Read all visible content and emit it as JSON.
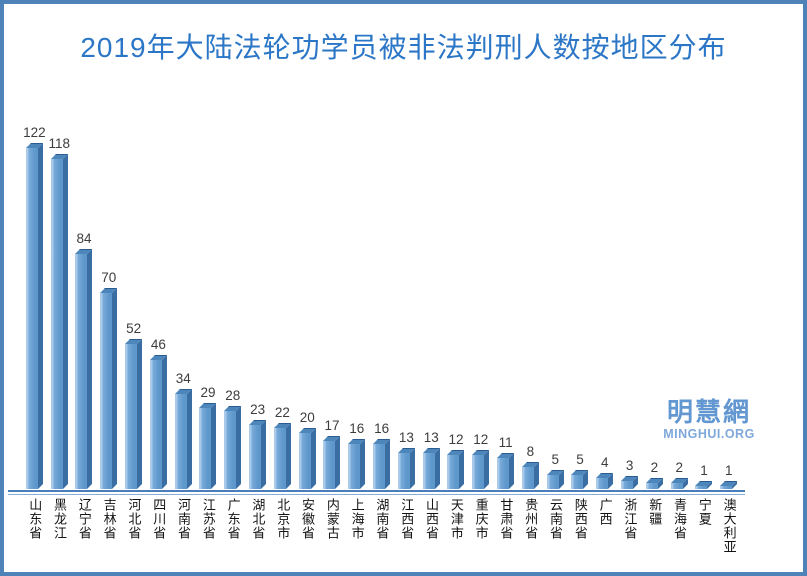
{
  "frame": {
    "border_color": "#4e82b9",
    "background_color": "#ffffff"
  },
  "title": "2019年大陆法轮功学员被非法判刑人数按地区分布",
  "title_color": "#2b76c6",
  "watermark": {
    "logo_text": "明慧網",
    "url_text": "MINGHUI.ORG",
    "color": "#6297d2"
  },
  "chart_data": {
    "type": "bar",
    "style": "3d-column",
    "title": "2019年大陆法轮功学员被非法判刑人数按地区分布",
    "xlabel": "",
    "ylabel": "",
    "ylim": [
      0,
      130
    ],
    "grid": false,
    "legend_position": "none",
    "value_labels_shown": true,
    "categories": [
      "山东省",
      "黑龙江",
      "辽宁省",
      "吉林省",
      "河北省",
      "四川省",
      "河南省",
      "江苏省",
      "广东省",
      "湖北省",
      "北京市",
      "安徽省",
      "内蒙古",
      "上海市",
      "湖南省",
      "江西省",
      "山西省",
      "天津市",
      "重庆市",
      "甘肃省",
      "贵州省",
      "云南省",
      "陕西省",
      "广西",
      "浙江省",
      "新疆",
      "青海省",
      "宁夏",
      "澳大利亚"
    ],
    "values": [
      122,
      118,
      84,
      70,
      52,
      46,
      34,
      29,
      28,
      23,
      22,
      20,
      17,
      16,
      16,
      13,
      13,
      12,
      12,
      11,
      8,
      5,
      5,
      4,
      3,
      2,
      2,
      1,
      1
    ],
    "colors": {
      "bar_front": "#5e97cb",
      "bar_front_light": "#a9cae9",
      "bar_front_mid": "#79abda",
      "bar_side": "#3a6da1",
      "bar_top": "#4c86bb",
      "bar_top_edge": "#2b5c90",
      "axis": "#4a7dbb",
      "axis_underline": "#86add8",
      "value_label": "#3d3d3d",
      "category_label": "#141414"
    }
  }
}
